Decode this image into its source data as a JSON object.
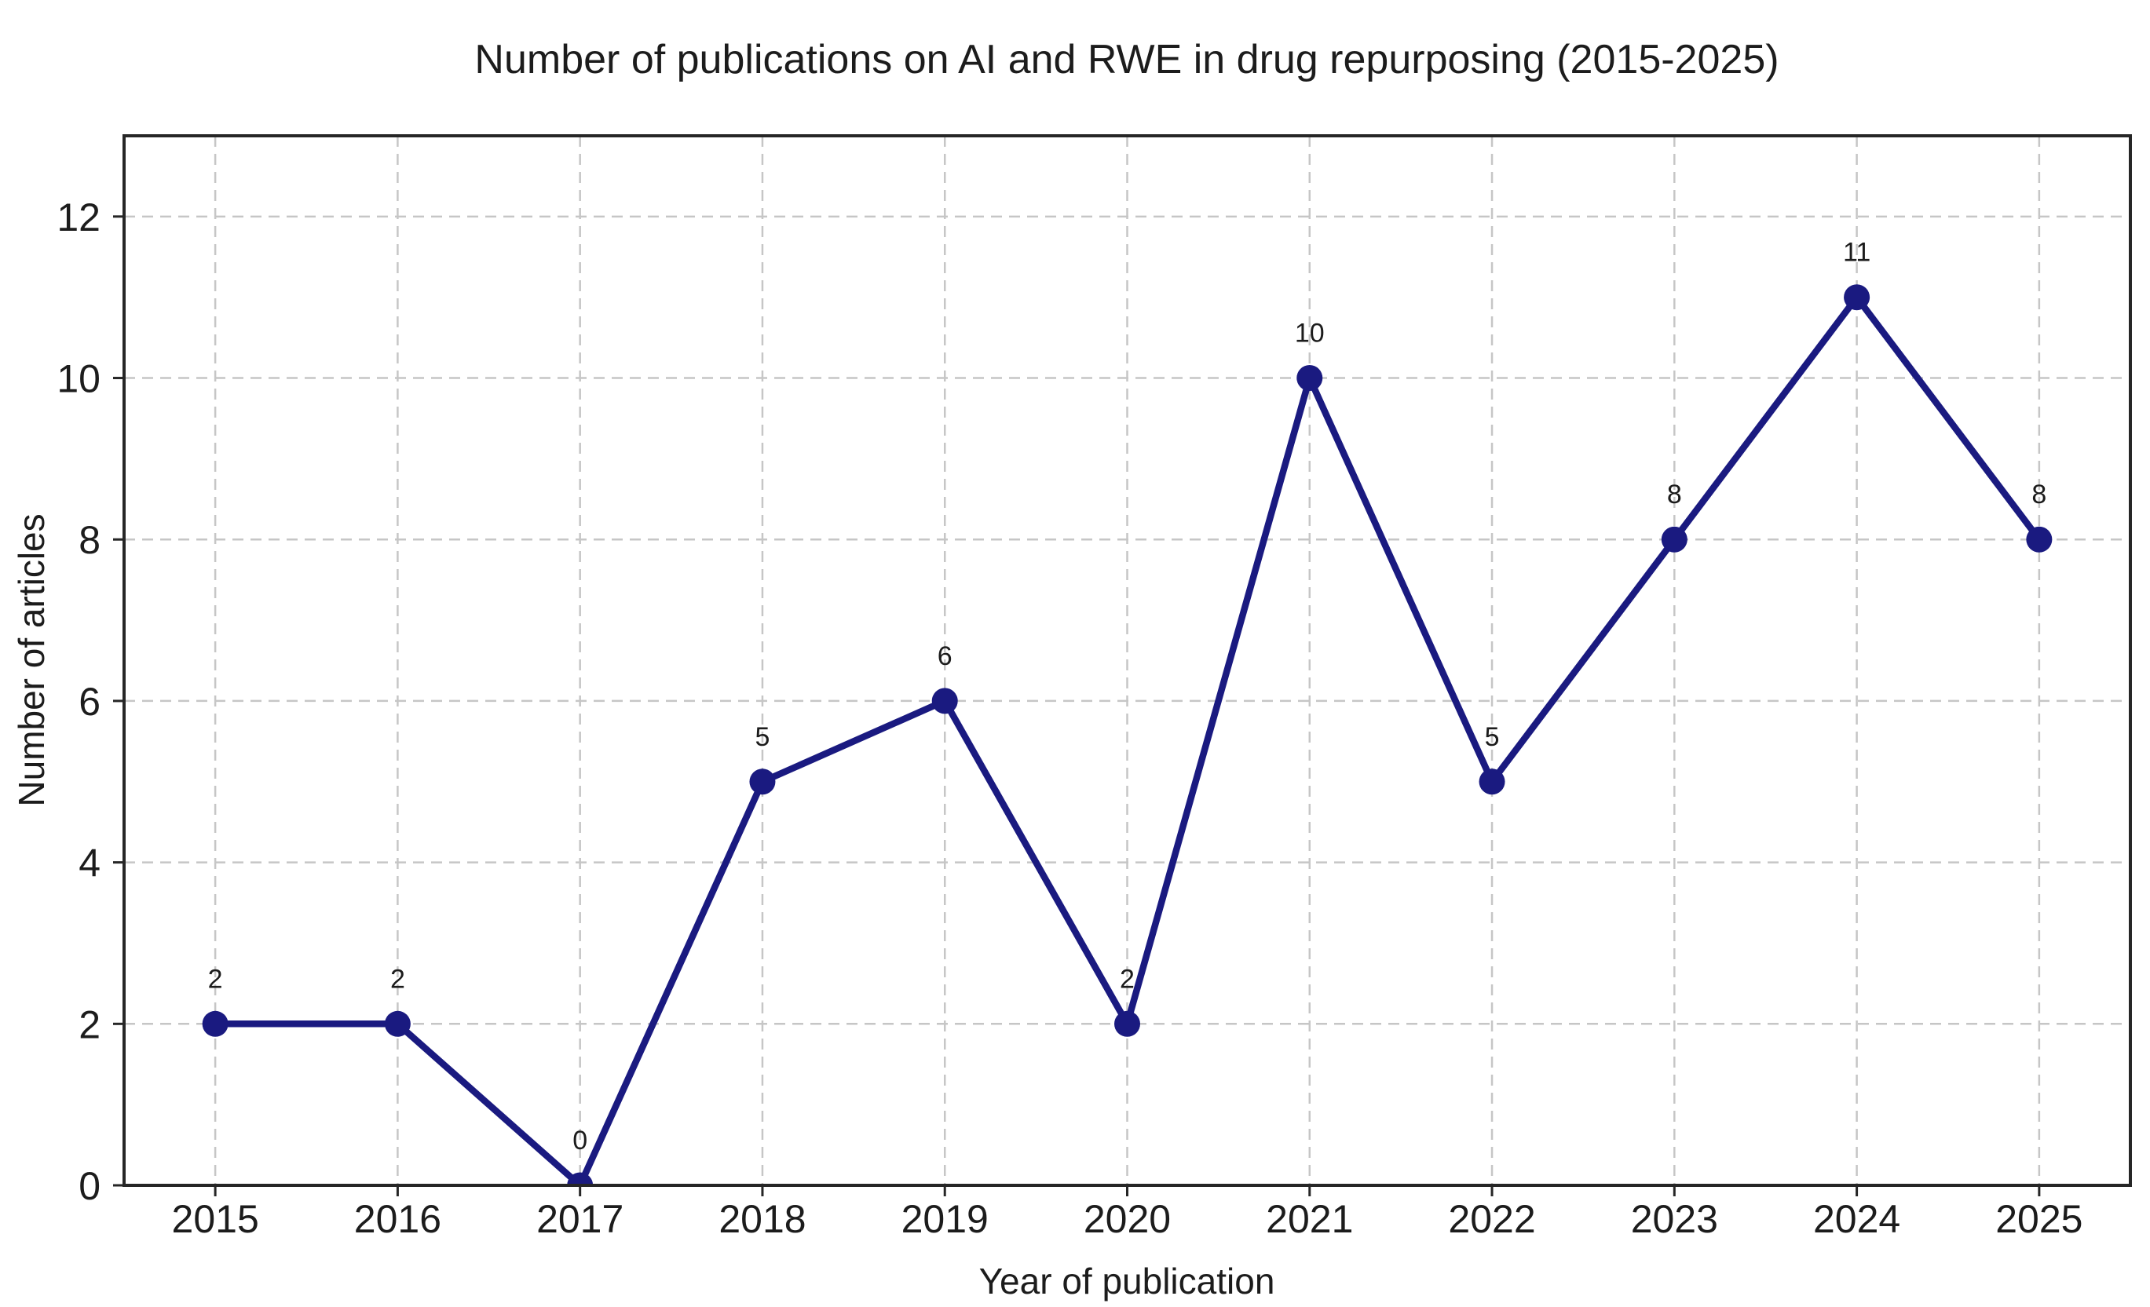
{
  "chart_data": {
    "type": "line",
    "title": "Number of publications on AI and RWE in drug repurposing (2015-2025)",
    "xlabel": "Year of publication",
    "ylabel": "Number of articles",
    "x": [
      2015,
      2016,
      2017,
      2018,
      2019,
      2020,
      2021,
      2022,
      2023,
      2024,
      2025
    ],
    "values": [
      2,
      2,
      0,
      5,
      6,
      2,
      10,
      5,
      8,
      11,
      8
    ],
    "point_labels": [
      "2",
      "2",
      "0",
      "5",
      "6",
      "2",
      "10",
      "5",
      "8",
      "11",
      "8"
    ],
    "xlim": [
      2014.5,
      2025.5
    ],
    "ylim": [
      0,
      13
    ],
    "yticks": [
      0,
      2,
      4,
      6,
      8,
      10,
      12
    ],
    "xticks": [
      2015,
      2016,
      2017,
      2018,
      2019,
      2020,
      2021,
      2022,
      2023,
      2024,
      2025
    ],
    "grid": {
      "visible": true,
      "style": "dashed",
      "axes": "both"
    },
    "legend": {
      "visible": false
    },
    "marker": {
      "shape": "circle",
      "radius": 16.5
    },
    "colors": {
      "series": "#1a1a80",
      "grid": "#c6c6c6",
      "axis": "#262626",
      "text": "#1c1c1c",
      "background": "#ffffff"
    }
  }
}
